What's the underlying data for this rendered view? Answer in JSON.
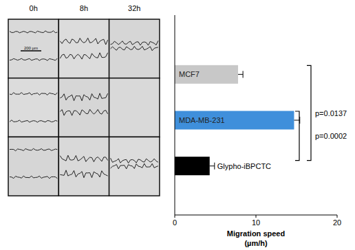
{
  "micrographs": {
    "columns": [
      "0h",
      "8h",
      "32h"
    ],
    "scale_bar": "200 µm"
  },
  "chart_data": {
    "type": "bar",
    "orientation": "horizontal",
    "categories": [
      "MCF7",
      "MDA-MB-231",
      "Glypho-iBPCTC"
    ],
    "values": [
      7.8,
      14.7,
      4.3
    ],
    "errors": [
      0.6,
      0.7,
      0.6
    ],
    "colors": [
      "#c8c8c8",
      "#3f8fdb",
      "#000000"
    ],
    "x_label": "Migration speed (µm/h)",
    "xlim": [
      0,
      20
    ],
    "xticks": [
      0,
      10,
      20
    ],
    "comparisons": [
      {
        "pair": [
          "MCF7",
          "Glypho-iBPCTC"
        ],
        "label": "p=0.0137"
      },
      {
        "pair": [
          "MDA-MB-231",
          "Glypho-iBPCTC"
        ],
        "label": "p=0.0002"
      }
    ]
  }
}
